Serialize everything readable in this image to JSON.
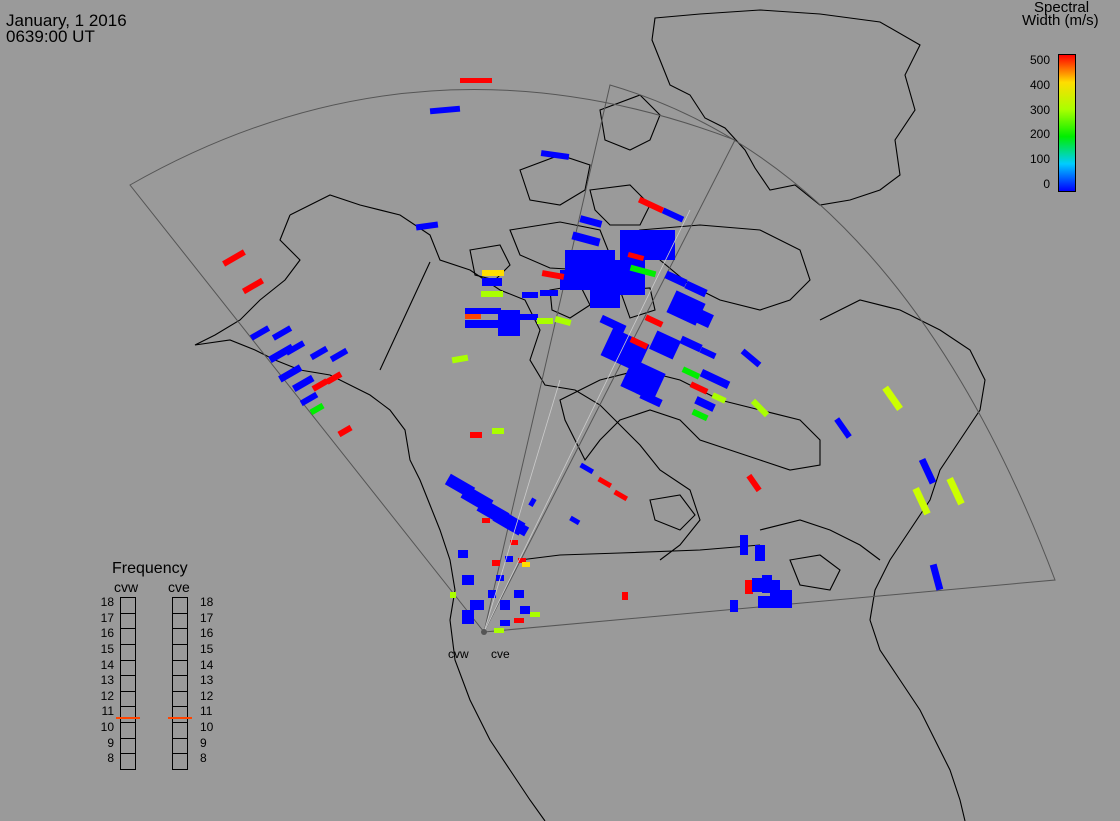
{
  "header": {
    "date": "January, 1 2016",
    "time": "0639:00 UT"
  },
  "colorbar": {
    "title_line1": "Spectral",
    "title_line2": "Width (m/s)",
    "ticks": [
      "500",
      "400",
      "300",
      "200",
      "100",
      "0"
    ],
    "min": 0,
    "max": 500,
    "colors": [
      "#0000ff",
      "#00ccff",
      "#00ee00",
      "#aaff00",
      "#ffdd00",
      "#ff0000"
    ]
  },
  "radars": {
    "west_label": "cvw",
    "east_label": "cve"
  },
  "frequency_panel": {
    "title": "Frequency",
    "west_label": "cvw",
    "east_label": "cve",
    "ticks": [
      "18",
      "17",
      "16",
      "15",
      "14",
      "13",
      "12",
      "11",
      "10",
      "9",
      "8"
    ],
    "west_value_mhz": 10.8,
    "east_value_mhz": 10.8,
    "marker_color": "#ff4400"
  }
}
